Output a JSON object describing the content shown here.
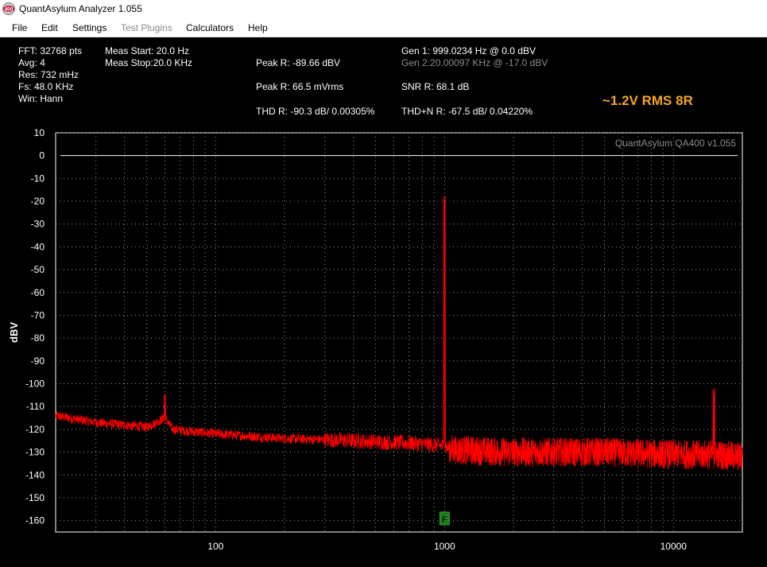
{
  "window": {
    "title": "QuantAsylum Analyzer 1.055",
    "icon": "qa400-app-icon",
    "icon_text": "400"
  },
  "menu": {
    "file": "File",
    "edit": "Edit",
    "settings": "Settings",
    "test_plugins": "Test Plugins",
    "calculators": "Calculators",
    "help": "Help"
  },
  "stats": {
    "fft": "FFT: 32768 pts",
    "avg": "Avg: 4",
    "res": "Res: 732 mHz",
    "fs": "Fs: 48.0 KHz",
    "win": "Win: Hann",
    "meas_start": "Meas Start: 20.0 Hz",
    "meas_stop": "Meas Stop:20.0 KHz",
    "peak_dbv": "Peak R: -89.66 dBV",
    "peak_mvrms": "Peak R: 66.5 mVrms",
    "thd": "THD R: -90.3 dB/ 0.00305%",
    "gen1": "Gen 1: 999.0234 Hz @ 0.0  dBV",
    "gen2": "Gen 2:20.00097 KHz @ -17.0  dBV",
    "snr": "SNR R: 68.1 dB",
    "thdn": "THD+N R: -67.5 dB/ 0.04220%",
    "note": "~1.2V RMS 8R"
  },
  "colors": {
    "background": "#000000",
    "trace": "#ff0000",
    "grid": "#9a9a9a",
    "note": "#f5a623",
    "marker": "#1e7d1e"
  },
  "chart_data": {
    "type": "line",
    "watermark": "QuantAsylum QA400 v1.055",
    "ylabel": "dBV",
    "xlabel": "",
    "x_scale": "log",
    "xlim": [
      20,
      20000
    ],
    "ylim": [
      -165,
      10
    ],
    "y_ticks": [
      10,
      0,
      -10,
      -20,
      -30,
      -40,
      -50,
      -60,
      -70,
      -80,
      -90,
      -100,
      -110,
      -120,
      -130,
      -140,
      -150,
      -160
    ],
    "x_ticks": [
      100,
      1000,
      10000
    ],
    "reference_line_dbv": 0,
    "grid": true,
    "marker": {
      "label": "F",
      "x": 1000
    },
    "series": [
      {
        "color": "#ff0000",
        "noise_floor": {
          "x": [
            20,
            30,
            50,
            60,
            65,
            100,
            200,
            400,
            700,
            950,
            1100,
            2000,
            5000,
            10000,
            15000,
            20000
          ],
          "y": [
            -114,
            -117,
            -119,
            -115,
            -120,
            -122,
            -124,
            -125,
            -126,
            -127,
            -129,
            -130,
            -130,
            -131,
            -131,
            -132
          ]
        },
        "peaks": [
          {
            "x": 999,
            "y": -22
          },
          {
            "x": 60,
            "y": -108
          },
          {
            "x": 15000,
            "y": -106
          }
        ]
      }
    ]
  }
}
